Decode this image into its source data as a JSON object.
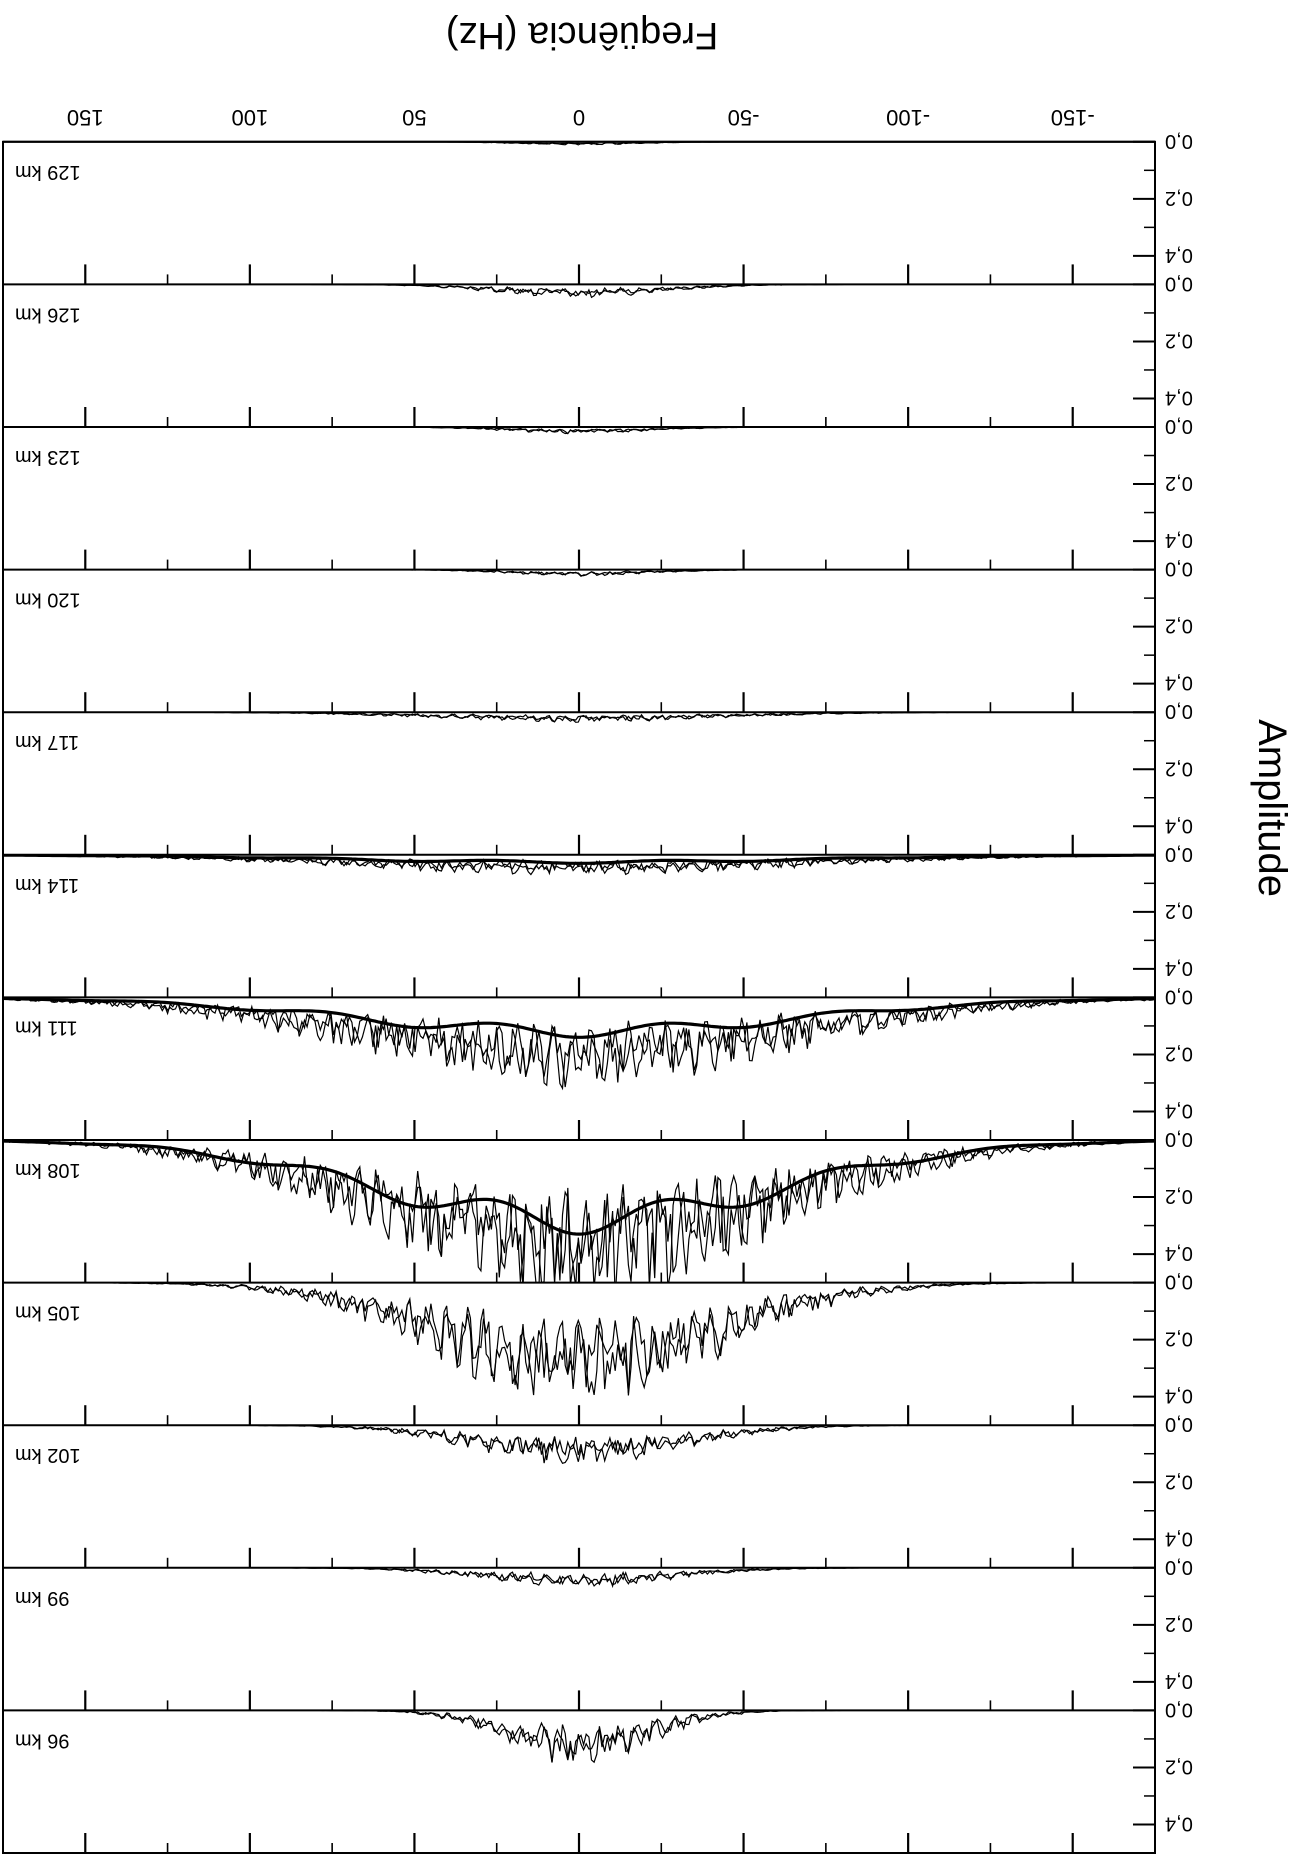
{
  "chart_data": {
    "type": "line",
    "x_title": "Freqüência (Hz)",
    "y_title": "Amplitude",
    "x_ticks": [
      "-150",
      "-100",
      "-50",
      "0",
      "50",
      "100",
      "150"
    ],
    "x_tick_values": [
      -150,
      -100,
      -50,
      0,
      50,
      100,
      150
    ],
    "y_ticks": [
      "0,0",
      "0,2",
      "0,4"
    ],
    "y_tick_values": [
      0.0,
      0.2,
      0.4
    ],
    "xlim": [
      -175,
      175
    ],
    "ylim": [
      0,
      0.5
    ],
    "orientation": "figure rotated 180 degrees",
    "series": [
      {
        "label": "96 km",
        "peak_amplitude": 0.17,
        "spread_hz": 30,
        "smooth_fit": false
      },
      {
        "label": "99 km",
        "peak_amplitude": 0.06,
        "spread_hz": 40,
        "smooth_fit": false
      },
      {
        "label": "102 km",
        "peak_amplitude": 0.12,
        "spread_hz": 45,
        "smooth_fit": false
      },
      {
        "label": "105 km",
        "peak_amplitude": 0.38,
        "spread_hz": 60,
        "smooth_fit": false
      },
      {
        "label": "108 km",
        "peak_amplitude": 0.49,
        "spread_hz": 85,
        "smooth_fit": true,
        "fit_peak": 0.33
      },
      {
        "label": "111 km",
        "peak_amplitude": 0.27,
        "spread_hz": 95,
        "smooth_fit": true,
        "fit_peak": 0.14
      },
      {
        "label": "114 km",
        "peak_amplitude": 0.06,
        "spread_hz": 100,
        "smooth_fit": true,
        "fit_peak": 0.03
      },
      {
        "label": "117 km",
        "peak_amplitude": 0.03,
        "spread_hz": 60,
        "smooth_fit": false
      },
      {
        "label": "120 km",
        "peak_amplitude": 0.02,
        "spread_hz": 30,
        "smooth_fit": false
      },
      {
        "label": "123 km",
        "peak_amplitude": 0.02,
        "spread_hz": 30,
        "smooth_fit": false
      },
      {
        "label": "126 km",
        "peak_amplitude": 0.04,
        "spread_hz": 35,
        "smooth_fit": false
      },
      {
        "label": "129 km",
        "peak_amplitude": 0.01,
        "spread_hz": 25,
        "smooth_fit": false
      }
    ]
  }
}
